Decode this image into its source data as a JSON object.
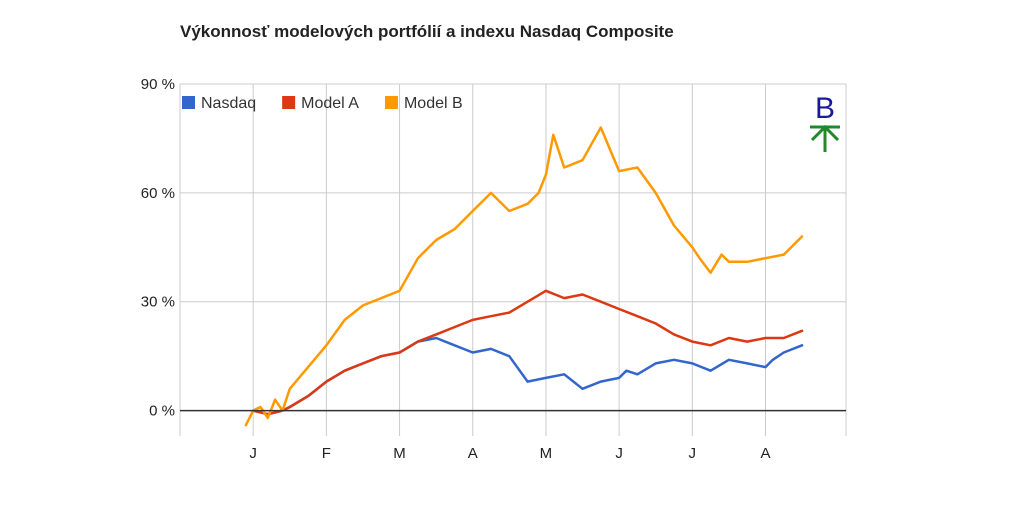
{
  "chart_data": {
    "type": "line",
    "title": "Výkonnosť modelových portfólií a indexu Nasdaq Composite",
    "xlabel": "",
    "ylabel": "",
    "ylim": [
      -7,
      90
    ],
    "yticks": [
      0,
      30,
      60,
      90
    ],
    "ytick_labels": [
      "0 %",
      "30 %",
      "60 %",
      "90 %"
    ],
    "x_range": [
      -1,
      8.1
    ],
    "xtick_labels": [
      "J",
      "F",
      "M",
      "A",
      "M",
      "J",
      "J",
      "A"
    ],
    "grid": true,
    "legend_position": "top-left",
    "series": [
      {
        "name": "Nasdaq",
        "color": "#3366cc",
        "x": [
          0,
          0.2,
          0.4,
          0.5,
          0.75,
          1.0,
          1.25,
          1.5,
          1.75,
          2.0,
          2.25,
          2.5,
          2.75,
          3.0,
          3.25,
          3.5,
          3.75,
          4.0,
          4.25,
          4.5,
          4.75,
          5.0,
          5.1,
          5.25,
          5.5,
          5.75,
          6.0,
          6.25,
          6.5,
          6.75,
          7.0,
          7.1,
          7.25,
          7.5
        ],
        "values": [
          0,
          -1,
          0,
          1,
          4,
          8,
          11,
          13,
          15,
          16,
          19,
          20,
          18,
          16,
          17,
          15,
          8,
          9,
          10,
          6,
          8,
          9,
          11,
          10,
          13,
          14,
          13,
          11,
          14,
          13,
          12,
          14,
          16,
          18
        ]
      },
      {
        "name": "Model A",
        "color": "#dc3912",
        "x": [
          0,
          0.2,
          0.4,
          0.5,
          0.75,
          1.0,
          1.25,
          1.5,
          1.75,
          2.0,
          2.25,
          2.5,
          2.75,
          3.0,
          3.25,
          3.5,
          3.75,
          4.0,
          4.25,
          4.5,
          4.75,
          5.0,
          5.25,
          5.5,
          5.75,
          6.0,
          6.25,
          6.5,
          6.75,
          7.0,
          7.25,
          7.5
        ],
        "values": [
          0,
          -1,
          0,
          1,
          4,
          8,
          11,
          13,
          15,
          16,
          19,
          21,
          23,
          25,
          26,
          27,
          30,
          33,
          31,
          32,
          30,
          28,
          26,
          24,
          21,
          19,
          18,
          20,
          19,
          20,
          20,
          22
        ]
      },
      {
        "name": "Model B",
        "color": "#ff9900",
        "x": [
          -0.1,
          0.0,
          0.1,
          0.2,
          0.3,
          0.4,
          0.5,
          0.75,
          1.0,
          1.25,
          1.5,
          1.75,
          2.0,
          2.25,
          2.5,
          2.75,
          3.0,
          3.25,
          3.5,
          3.75,
          3.9,
          4.0,
          4.1,
          4.25,
          4.5,
          4.75,
          5.0,
          5.25,
          5.5,
          5.75,
          6.0,
          6.1,
          6.25,
          6.4,
          6.5,
          6.75,
          7.0,
          7.25,
          7.5
        ],
        "values": [
          -4,
          0,
          1,
          -2,
          3,
          0,
          6,
          12,
          18,
          25,
          29,
          31,
          33,
          42,
          47,
          50,
          55,
          60,
          55,
          57,
          60,
          65,
          76,
          67,
          69,
          78,
          66,
          67,
          60,
          51,
          45,
          42,
          38,
          43,
          41,
          41,
          42,
          43,
          48
        ]
      }
    ]
  },
  "logo": {
    "letter": "B",
    "letter_color": "#1a1a99",
    "arrow_color": "#22882b"
  }
}
